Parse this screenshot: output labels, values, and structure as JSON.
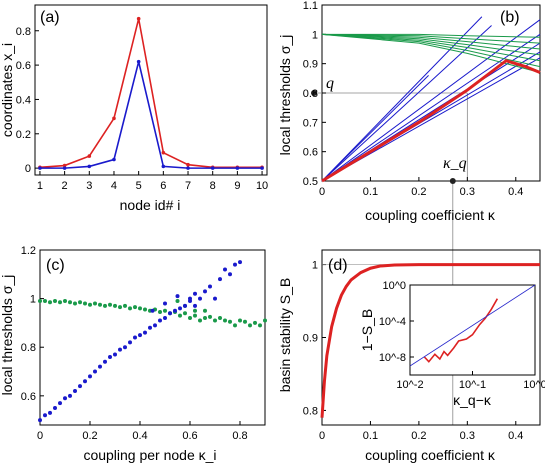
{
  "chart_data": [
    {
      "id": "a",
      "type": "line",
      "panel_label": "(a)",
      "xlabel": "node id# i",
      "ylabel": "coordinates x_i",
      "xlim": [
        0.8,
        10.2
      ],
      "ylim": [
        -0.04,
        0.95
      ],
      "xticks": [
        1,
        2,
        3,
        4,
        5,
        6,
        7,
        8,
        9,
        10
      ],
      "yticks": [
        0,
        0.2,
        0.4,
        0.6,
        0.8
      ],
      "x": [
        1,
        2,
        3,
        4,
        5,
        6,
        7,
        8,
        9,
        10
      ],
      "series": [
        {
          "color": "#dd2222",
          "values": [
            0.005,
            0.015,
            0.07,
            0.29,
            0.87,
            0.09,
            0.02,
            0.005,
            0.005,
            0.005
          ]
        },
        {
          "color": "#1a1acc",
          "values": [
            0.0,
            0.0,
            0.01,
            0.05,
            0.62,
            0.01,
            0.0,
            0.0,
            0.0,
            0.0
          ]
        }
      ]
    },
    {
      "id": "b",
      "type": "line",
      "panel_label": "(b)",
      "xlabel": "coupling coefficient κ",
      "ylabel": "local thresholds σ_j",
      "xlim": [
        0,
        0.45
      ],
      "ylim": [
        0.5,
        1.1
      ],
      "xticks": [
        0,
        0.1,
        0.2,
        0.3,
        0.4
      ],
      "yticks": [
        0.5,
        0.6,
        0.7,
        0.8,
        0.9,
        1,
        1.1
      ],
      "annotations": {
        "q_label": "q",
        "q_value": 0.8,
        "kq_label": "κ_q",
        "kq_value": 0.27
      },
      "series": [
        {
          "color": "#dd2222",
          "x": [
            0,
            0.1,
            0.2,
            0.3,
            0.38,
            0.42,
            0.45
          ],
          "values": [
            0.5,
            0.6,
            0.7,
            0.81,
            0.91,
            0.89,
            0.87
          ]
        },
        {
          "color": "#1a1acc",
          "x": [
            0,
            0.22
          ],
          "values": [
            0.5,
            0.86
          ]
        },
        {
          "color": "#1a1acc",
          "x": [
            0,
            0.33
          ],
          "values": [
            0.5,
            1.06
          ]
        },
        {
          "color": "#1a1acc",
          "x": [
            0,
            0.35
          ],
          "values": [
            0.5,
            1.03
          ]
        },
        {
          "color": "#1a1acc",
          "x": [
            0,
            0.45
          ],
          "values": [
            0.5,
            1.05
          ]
        },
        {
          "color": "#1a1acc",
          "x": [
            0,
            0.45
          ],
          "values": [
            0.5,
            1.0
          ]
        },
        {
          "color": "#1a1acc",
          "x": [
            0,
            0.45
          ],
          "values": [
            0.5,
            0.97
          ]
        },
        {
          "color": "#1a1acc",
          "x": [
            0,
            0.45
          ],
          "values": [
            0.5,
            0.94
          ]
        },
        {
          "color": "#1a1acc",
          "x": [
            0,
            0.45
          ],
          "values": [
            0.5,
            0.92
          ]
        },
        {
          "color": "#1a9a4a",
          "x": [
            0,
            0.2,
            0.3,
            0.45
          ],
          "values": [
            1.0,
            1.0,
            0.995,
            0.99
          ]
        },
        {
          "color": "#1a9a4a",
          "x": [
            0,
            0.2,
            0.3,
            0.45
          ],
          "values": [
            1.0,
            0.995,
            0.985,
            0.97
          ]
        },
        {
          "color": "#1a9a4a",
          "x": [
            0,
            0.2,
            0.3,
            0.45
          ],
          "values": [
            1.0,
            0.99,
            0.975,
            0.95
          ]
        },
        {
          "color": "#1a9a4a",
          "x": [
            0,
            0.2,
            0.3,
            0.45
          ],
          "values": [
            1.0,
            0.985,
            0.965,
            0.93
          ]
        },
        {
          "color": "#1a9a4a",
          "x": [
            0,
            0.2,
            0.3,
            0.45
          ],
          "values": [
            1.0,
            0.98,
            0.955,
            0.91
          ]
        },
        {
          "color": "#1a9a4a",
          "x": [
            0,
            0.2,
            0.3,
            0.45
          ],
          "values": [
            1.0,
            0.975,
            0.945,
            0.89
          ]
        },
        {
          "color": "#1a9a4a",
          "x": [
            0,
            0.2,
            0.3,
            0.45
          ],
          "values": [
            1.0,
            0.97,
            0.935,
            0.87
          ]
        }
      ]
    },
    {
      "id": "c",
      "type": "scatter",
      "panel_label": "(c)",
      "xlabel": "coupling per node κ_i",
      "ylabel": "local thresholds σ_j",
      "xlim": [
        0,
        0.9
      ],
      "ylim": [
        0.48,
        1.2
      ],
      "xticks": [
        0,
        0.2,
        0.4,
        0.6,
        0.8
      ],
      "yticks": [
        0.6,
        0.8,
        1,
        1.2
      ],
      "series": [
        {
          "color": "#1a9a4a",
          "points": [
            [
              0.0,
              0.99
            ],
            [
              0.02,
              0.99
            ],
            [
              0.04,
              0.985
            ],
            [
              0.06,
              0.99
            ],
            [
              0.08,
              0.985
            ],
            [
              0.1,
              0.99
            ],
            [
              0.12,
              0.985
            ],
            [
              0.14,
              0.98
            ],
            [
              0.16,
              0.985
            ],
            [
              0.18,
              0.98
            ],
            [
              0.2,
              0.975
            ],
            [
              0.22,
              0.98
            ],
            [
              0.24,
              0.975
            ],
            [
              0.26,
              0.97
            ],
            [
              0.28,
              0.975
            ],
            [
              0.3,
              0.97
            ],
            [
              0.32,
              0.965
            ],
            [
              0.34,
              0.97
            ],
            [
              0.36,
              0.96
            ],
            [
              0.38,
              0.965
            ],
            [
              0.4,
              0.96
            ],
            [
              0.42,
              0.955
            ],
            [
              0.44,
              0.95
            ],
            [
              0.46,
              0.955
            ],
            [
              0.48,
              0.945
            ],
            [
              0.5,
              0.95
            ],
            [
              0.52,
              0.94
            ],
            [
              0.54,
              0.945
            ],
            [
              0.56,
              0.93
            ],
            [
              0.58,
              0.94
            ],
            [
              0.6,
              0.92
            ],
            [
              0.62,
              0.93
            ],
            [
              0.64,
              0.91
            ],
            [
              0.66,
              0.92
            ],
            [
              0.68,
              0.925
            ],
            [
              0.7,
              0.91
            ],
            [
              0.72,
              0.92
            ],
            [
              0.74,
              0.91
            ],
            [
              0.76,
              0.905
            ],
            [
              0.78,
              0.89
            ],
            [
              0.8,
              0.91
            ],
            [
              0.82,
              0.905
            ],
            [
              0.84,
              0.89
            ],
            [
              0.86,
              0.9
            ],
            [
              0.88,
              0.89
            ],
            [
              0.9,
              0.91
            ],
            [
              0.55,
              0.99
            ],
            [
              0.58,
              0.97
            ],
            [
              0.62,
              0.95
            ],
            [
              0.66,
              0.95
            ]
          ]
        },
        {
          "color": "#1a1acc",
          "points": [
            [
              0.0,
              0.5
            ],
            [
              0.02,
              0.52
            ],
            [
              0.04,
              0.53
            ],
            [
              0.06,
              0.55
            ],
            [
              0.08,
              0.57
            ],
            [
              0.1,
              0.59
            ],
            [
              0.12,
              0.6
            ],
            [
              0.14,
              0.62
            ],
            [
              0.16,
              0.64
            ],
            [
              0.18,
              0.66
            ],
            [
              0.2,
              0.68
            ],
            [
              0.22,
              0.7
            ],
            [
              0.24,
              0.72
            ],
            [
              0.26,
              0.74
            ],
            [
              0.28,
              0.76
            ],
            [
              0.3,
              0.77
            ],
            [
              0.32,
              0.79
            ],
            [
              0.34,
              0.8
            ],
            [
              0.36,
              0.82
            ],
            [
              0.38,
              0.84
            ],
            [
              0.4,
              0.85
            ],
            [
              0.42,
              0.86
            ],
            [
              0.44,
              0.88
            ],
            [
              0.46,
              0.89
            ],
            [
              0.48,
              0.91
            ],
            [
              0.5,
              0.92
            ],
            [
              0.52,
              0.94
            ],
            [
              0.54,
              0.95
            ],
            [
              0.56,
              0.96
            ],
            [
              0.58,
              0.97
            ],
            [
              0.6,
              1.0
            ],
            [
              0.62,
              1.02
            ],
            [
              0.64,
              1.0
            ],
            [
              0.66,
              1.03
            ],
            [
              0.68,
              1.05
            ],
            [
              0.7,
              1.0
            ],
            [
              0.72,
              1.08
            ],
            [
              0.74,
              1.12
            ],
            [
              0.76,
              1.1
            ],
            [
              0.78,
              1.14
            ],
            [
              0.8,
              1.15
            ],
            [
              0.6,
              0.99
            ],
            [
              0.62,
              0.97
            ],
            [
              0.55,
              1.01
            ],
            [
              0.5,
              0.98
            ],
            [
              0.45,
              0.95
            ]
          ]
        }
      ]
    },
    {
      "id": "d",
      "type": "line",
      "panel_label": "(d)",
      "xlabel": "coupling coefficient κ",
      "ylabel": "basin stability S_B",
      "xlim": [
        0,
        0.45
      ],
      "ylim": [
        0.78,
        1.02
      ],
      "xticks": [
        0,
        0.1,
        0.2,
        0.3,
        0.4
      ],
      "yticks": [
        0.8,
        0.9,
        1
      ],
      "series": [
        {
          "color": "#dd2222",
          "x": [
            0,
            0.005,
            0.01,
            0.02,
            0.03,
            0.04,
            0.05,
            0.06,
            0.08,
            0.1,
            0.12,
            0.15,
            0.2,
            0.3,
            0.45
          ],
          "values": [
            0.79,
            0.84,
            0.875,
            0.915,
            0.94,
            0.958,
            0.97,
            0.979,
            0.989,
            0.995,
            0.998,
            0.9995,
            1.0,
            1.0,
            1.0
          ]
        }
      ],
      "inset": {
        "type": "line",
        "xlabel": "κ_q−κ",
        "ylabel": "1−S_B",
        "xscale": "log",
        "yscale": "log",
        "xlim": [
          0.01,
          1
        ],
        "ylim": [
          1e-10,
          1
        ],
        "xtick_labels": [
          "10^-2",
          "10^-1",
          "10^0"
        ],
        "ytick_labels": [
          "10^-8",
          "10^-4",
          "10^0"
        ],
        "series": [
          {
            "color": "#dd2222",
            "x": [
              0.017,
              0.02,
              0.025,
              0.03,
              0.035,
              0.04,
              0.05,
              0.06,
              0.08,
              0.1,
              0.13,
              0.16,
              0.2,
              0.25
            ],
            "values": [
              1e-08,
              3e-09,
              2e-08,
              6e-09,
              4e-08,
              1.5e-08,
              1e-07,
              6e-07,
              1e-06,
              3e-06,
              4e-05,
              0.0002,
              0.002,
              0.03
            ]
          },
          {
            "color": "#2a2acc",
            "x": [
              0.01,
              1
            ],
            "values": [
              1e-09,
              1
            ]
          }
        ]
      }
    }
  ]
}
